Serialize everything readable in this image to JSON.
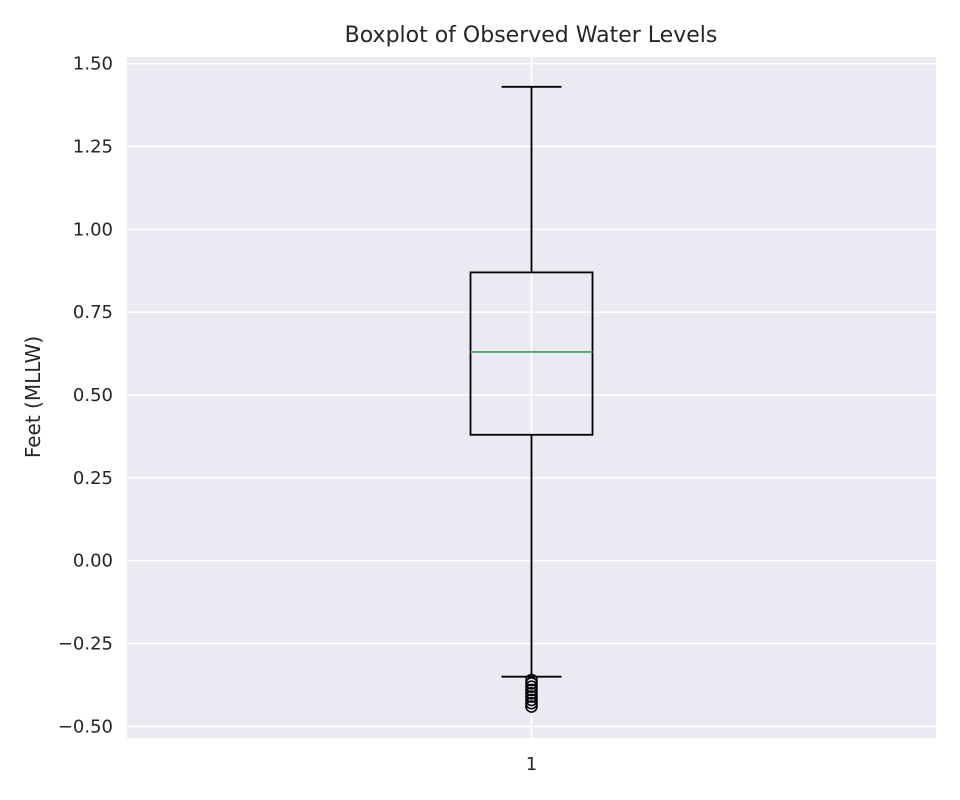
{
  "chart_data": {
    "type": "boxplot",
    "title": "Boxplot of Observed Water Levels",
    "xlabel": "",
    "ylabel": "Feet (MLLW)",
    "categories": [
      "1"
    ],
    "ylim": [
      -0.535,
      1.52
    ],
    "yticks": [
      "1.50",
      "1.25",
      "1.00",
      "0.75",
      "0.50",
      "0.25",
      "0.00",
      "−0.25",
      "−0.50"
    ],
    "ytick_values": [
      1.5,
      1.25,
      1.0,
      0.75,
      0.5,
      0.25,
      0.0,
      -0.25,
      -0.5
    ],
    "grid": true,
    "boxes": [
      {
        "category": "1",
        "whisker_low": -0.35,
        "q1": 0.38,
        "median": 0.63,
        "q3": 0.87,
        "whisker_high": 1.43,
        "outliers": [
          -0.36,
          -0.37,
          -0.38,
          -0.39,
          -0.4,
          -0.41,
          -0.42,
          -0.43,
          -0.44
        ]
      }
    ],
    "colors": {
      "background": "#eaeaf2",
      "grid": "#ffffff",
      "box": "#000000",
      "median": "#55a868",
      "text": "#262626"
    }
  }
}
